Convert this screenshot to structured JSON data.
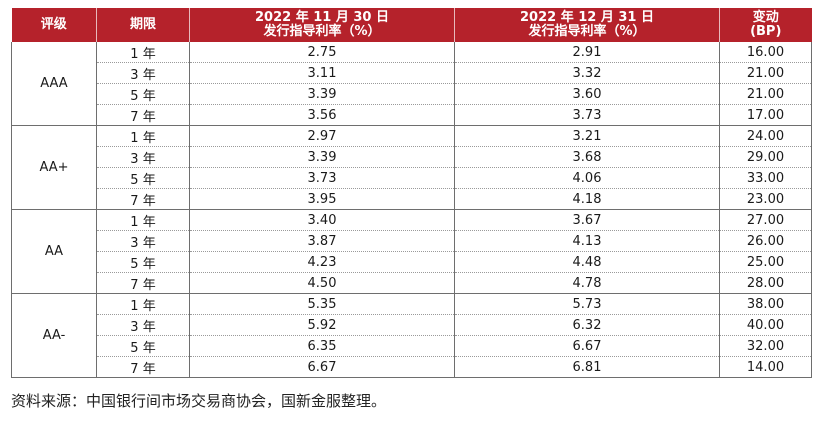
{
  "header": {
    "rating": "评级",
    "term": "期限",
    "nov_line1": "2022 年 11 月 30 日",
    "nov_line2": "发行指导利率（%）",
    "dec_line1": "2022 年 12 月 31 日",
    "dec_line2": "发行指导利率（%）",
    "change_line1": "变动",
    "change_line2": "(BP)"
  },
  "groups": [
    {
      "rating": "AAA",
      "rows": [
        {
          "term": "1 年",
          "nov": "2.75",
          "dec": "2.91",
          "change": "16.00"
        },
        {
          "term": "3 年",
          "nov": "3.11",
          "dec": "3.32",
          "change": "21.00"
        },
        {
          "term": "5 年",
          "nov": "3.39",
          "dec": "3.60",
          "change": "21.00"
        },
        {
          "term": "7 年",
          "nov": "3.56",
          "dec": "3.73",
          "change": "17.00"
        }
      ]
    },
    {
      "rating": "AA+",
      "rows": [
        {
          "term": "1 年",
          "nov": "2.97",
          "dec": "3.21",
          "change": "24.00"
        },
        {
          "term": "3 年",
          "nov": "3.39",
          "dec": "3.68",
          "change": "29.00"
        },
        {
          "term": "5 年",
          "nov": "3.73",
          "dec": "4.06",
          "change": "33.00"
        },
        {
          "term": "7 年",
          "nov": "3.95",
          "dec": "4.18",
          "change": "23.00"
        }
      ]
    },
    {
      "rating": "AA",
      "rows": [
        {
          "term": "1 年",
          "nov": "3.40",
          "dec": "3.67",
          "change": "27.00"
        },
        {
          "term": "3 年",
          "nov": "3.87",
          "dec": "4.13",
          "change": "26.00"
        },
        {
          "term": "5 年",
          "nov": "4.23",
          "dec": "4.48",
          "change": "25.00"
        },
        {
          "term": "7 年",
          "nov": "4.50",
          "dec": "4.78",
          "change": "28.00"
        }
      ]
    },
    {
      "rating": "AA-",
      "rows": [
        {
          "term": "1 年",
          "nov": "5.35",
          "dec": "5.73",
          "change": "38.00"
        },
        {
          "term": "3 年",
          "nov": "5.92",
          "dec": "6.32",
          "change": "40.00"
        },
        {
          "term": "5 年",
          "nov": "6.35",
          "dec": "6.67",
          "change": "32.00"
        },
        {
          "term": "7 年",
          "nov": "6.67",
          "dec": "6.81",
          "change": "14.00"
        }
      ]
    }
  ],
  "source": "资料来源：中国银行间市场交易商协会，国新金服整理。"
}
